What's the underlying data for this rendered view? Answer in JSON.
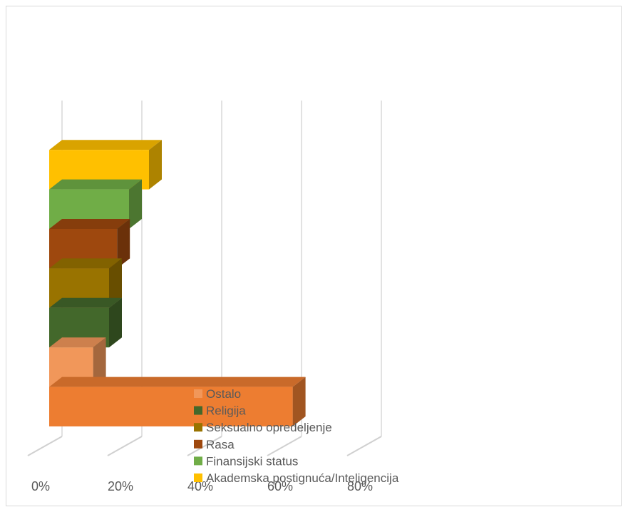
{
  "chart_data": {
    "type": "bar",
    "orientation": "horizontal",
    "style": "3d-stacked-horizontal",
    "categories": [
      ""
    ],
    "series": [
      {
        "name": "Akademska postignuća/Inteligencija",
        "values": [
          0.25
        ],
        "color": "#FFC000"
      },
      {
        "name": "Finansijski status",
        "values": [
          0.2
        ],
        "color": "#70AD47"
      },
      {
        "name": "Rasa",
        "values": [
          0.17
        ],
        "color": "#9E480E"
      },
      {
        "name": "Seksualno opredeljenje",
        "values": [
          0.15
        ],
        "color": "#997300"
      },
      {
        "name": "Religija",
        "values": [
          0.15
        ],
        "color": "#43682B"
      },
      {
        "name": "Ostalo",
        "values": [
          0.11
        ],
        "color": "#F1975A"
      },
      {
        "name": "",
        "values": [
          0.61
        ],
        "color": "#ED7D31"
      }
    ],
    "xlim": [
      0,
      0.8
    ],
    "x_ticks": [
      "0%",
      "20%",
      "40%",
      "60%",
      "80%"
    ],
    "grid": true,
    "legend": {
      "placement": "bottom-center",
      "items": [
        {
          "name": "Ostalo",
          "color": "#F1975A"
        },
        {
          "name": "Religija",
          "color": "#43682B"
        },
        {
          "name": "Seksualno opredeljenje",
          "color": "#997300"
        },
        {
          "name": "Rasa",
          "color": "#9E480E"
        },
        {
          "name": "Finansijski status",
          "color": "#70AD47"
        },
        {
          "name": "Akademska postignuća/Inteligencija",
          "color": "#FFC000"
        }
      ]
    }
  }
}
